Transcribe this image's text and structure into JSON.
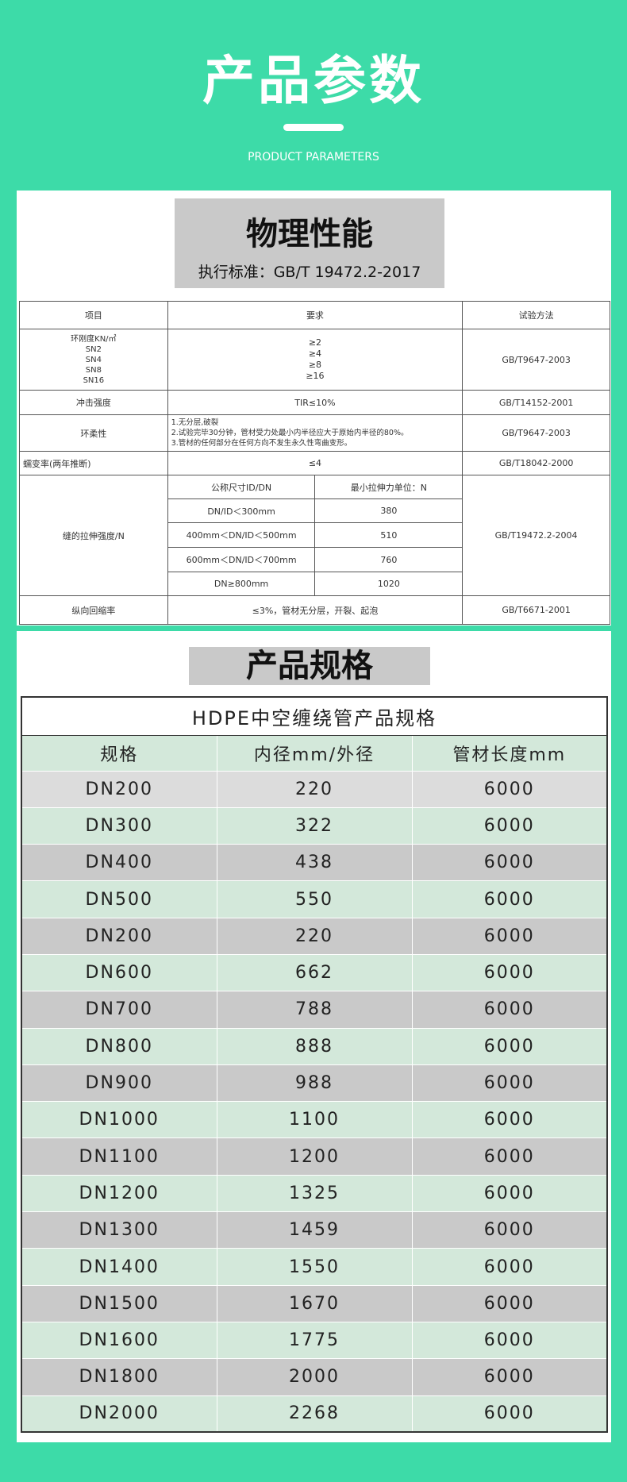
{
  "header": {
    "title": "产品参数",
    "subtitle": "PRODUCT PARAMETERS"
  },
  "physical": {
    "title": "物理性能",
    "standard": "执行标准：GB/T  19472.2-2017",
    "columns": [
      "项目",
      "要求",
      "试验方法"
    ],
    "ring": {
      "item": [
        "环刚度KN/㎡",
        "SN2",
        "SN4",
        "SN8",
        "SN16"
      ],
      "requirement": [
        "≥2",
        "≥4",
        "≥8",
        "≥16"
      ],
      "method": "GB/T9647-2003"
    },
    "impact": {
      "item": "冲击强度",
      "requirement": "TIR≤10%",
      "method": "GB/T14152-2001"
    },
    "flex": {
      "item": "环柔性",
      "requirement": [
        "1.无分层,破裂",
        "2.试验完毕30分钟，管材受力处最小内半径应大于原始内半径的80%。",
        "3.管材的任何部分在任何方向不发生永久性弯曲变形。"
      ],
      "method": "GB/T9647-2003"
    },
    "creep": {
      "item": "蠕变率(两年推断)",
      "requirement": "≤4",
      "method": "GB/T18042-2000"
    },
    "seam": {
      "item": "缝的拉伸强度/N",
      "subheader": [
        "公称尺寸ID/DN",
        "最小拉伸力单位：N"
      ],
      "subrows": [
        [
          "DN/ID＜300mm",
          380
        ],
        [
          "400mm＜DN/ID＜500mm",
          510
        ],
        [
          "600mm＜DN/ID＜700mm",
          760
        ],
        [
          "DN≥800mm",
          1020
        ]
      ],
      "method": "GB/T19472.2-2004"
    },
    "shrink": {
      "item": "纵向回缩率",
      "requirement": "≤3%，管材无分层，开裂、起泡",
      "method": "GB/T6671-2001"
    }
  },
  "spec": {
    "section": "产品规格",
    "title": "HDPE中空缠绕管产品规格",
    "columns": [
      "规格",
      "内径mm/外径",
      "管材长度mm"
    ],
    "rows": [
      [
        "DN200",
        220,
        6000
      ],
      [
        "DN300",
        322,
        6000
      ],
      [
        "DN400",
        438,
        6000
      ],
      [
        "DN500",
        550,
        6000
      ],
      [
        "DN200",
        220,
        6000
      ],
      [
        "DN600",
        662,
        6000
      ],
      [
        "DN700",
        788,
        6000
      ],
      [
        "DN800",
        888,
        6000
      ],
      [
        "DN900",
        988,
        6000
      ],
      [
        "DN1000",
        1100,
        6000
      ],
      [
        "DN1100",
        1200,
        6000
      ],
      [
        "DN1200",
        1325,
        6000
      ],
      [
        "DN1300",
        1459,
        6000
      ],
      [
        "DN1400",
        1550,
        6000
      ],
      [
        "DN1500",
        1670,
        6000
      ],
      [
        "DN1600",
        1775,
        6000
      ],
      [
        "DN1800",
        2000,
        6000
      ],
      [
        "DN2000",
        2268,
        6000
      ]
    ]
  }
}
